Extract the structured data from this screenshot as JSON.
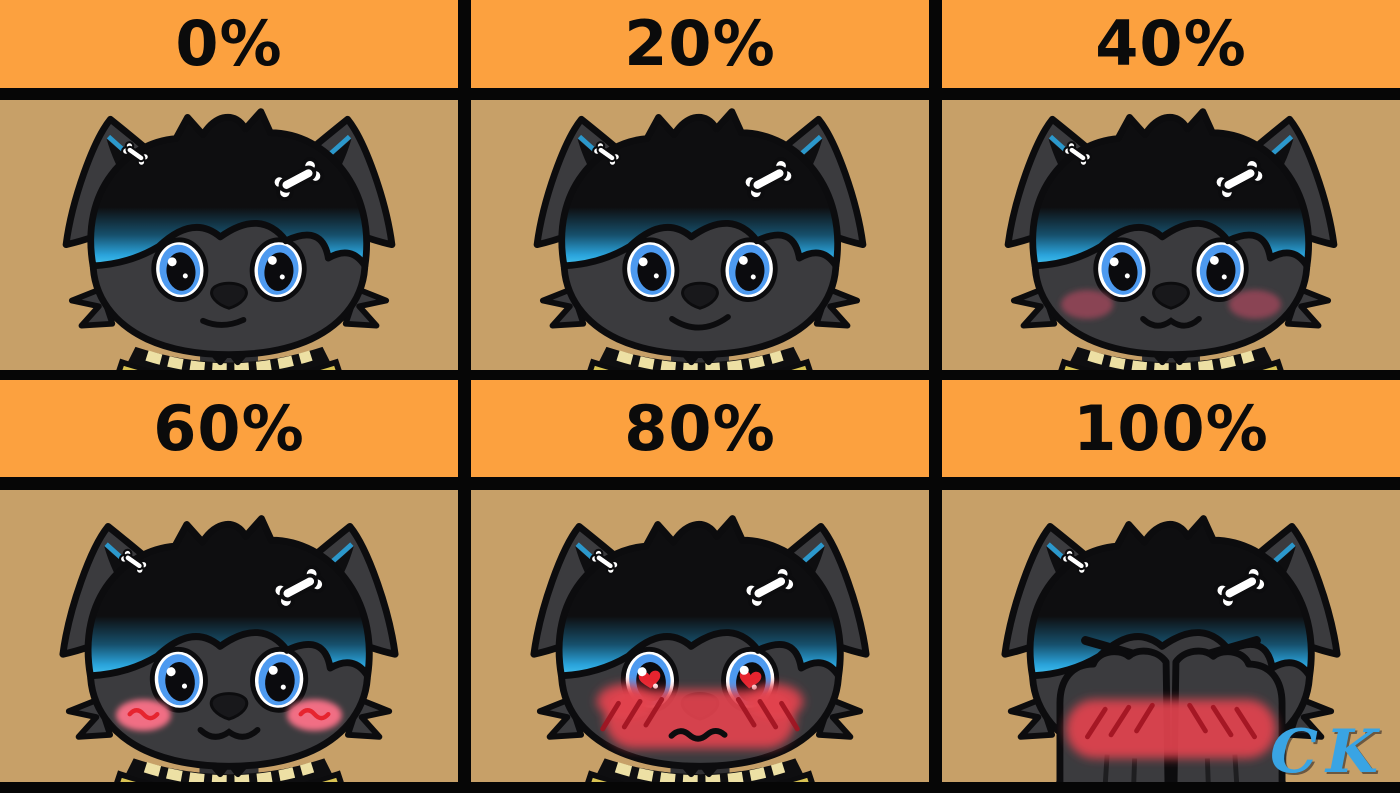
{
  "grid": {
    "rows": 2,
    "cols": 3,
    "header_style": "orange band with black percentage text"
  },
  "cells": [
    {
      "label": "0%",
      "expression": {
        "eyes": "open",
        "mouth": "neutral",
        "blush": "none",
        "pose": "normal"
      }
    },
    {
      "label": "20%",
      "expression": {
        "eyes": "open",
        "mouth": "smile",
        "blush": "none",
        "pose": "normal"
      }
    },
    {
      "label": "40%",
      "expression": {
        "eyes": "open",
        "mouth": "cat",
        "blush": "soft",
        "pose": "normal"
      }
    },
    {
      "label": "60%",
      "expression": {
        "eyes": "open",
        "mouth": "cat",
        "blush": "squiggle",
        "pose": "normal"
      }
    },
    {
      "label": "80%",
      "expression": {
        "eyes": "hearts",
        "mouth": "wavy",
        "blush": "band",
        "pose": "normal"
      }
    },
    {
      "label": "100%",
      "expression": {
        "eyes": "closed",
        "mouth": "hidden",
        "blush": "band",
        "pose": "covering"
      },
      "watermark": true
    }
  ],
  "watermark": {
    "text": "CK"
  },
  "colors": {
    "header_bg": "#FCA13F",
    "grid_line": "#060606",
    "art_bg": "#C7A068",
    "fur": "#3B3B3E",
    "fur_dark": "#303033",
    "fur_outline": "#0C0C0E",
    "hair_black": "#0E0E10",
    "hair_blue": "#2AA3DB",
    "hair_blue_bright": "#45C5F2",
    "eye_blue": "#4D9AF0",
    "eye_white": "#FFFFFF",
    "pupil": "#0B0B0E",
    "bone_white": "#FFFFFF",
    "nose": "#18181B",
    "sweater_yellow": "#D9C252",
    "collar_dash": "#EDE0A4",
    "blush_soft": "#8E4355",
    "blush_pink": "#F16E84",
    "blush_red": "#E2434E",
    "blush_stripe": "#A01320",
    "heart_red": "#E6242F",
    "watermark_blue": "#39A4E4"
  }
}
